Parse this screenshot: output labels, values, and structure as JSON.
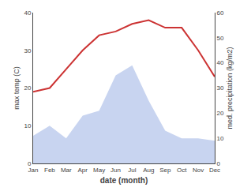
{
  "chart_data": {
    "type": "line",
    "xlabel": "date (month)",
    "ylabel": "max temp (C)",
    "y2label": "med. precipitation (kg/m2)",
    "categories": [
      "Jan",
      "Feb",
      "Mar",
      "Apr",
      "May",
      "Jun",
      "Jul",
      "Aug",
      "Sep",
      "Oct",
      "Nov",
      "Dec"
    ],
    "series": [
      {
        "type": "area",
        "color": "#c8d4f0",
        "axis": "y2",
        "values": [
          11,
          15,
          10,
          19,
          21,
          35,
          39,
          25,
          13,
          10,
          10,
          9
        ]
      },
      {
        "type": "line",
        "color": "#cc3333",
        "values": [
          19,
          20,
          25,
          30,
          34,
          35,
          37,
          38,
          36,
          36,
          30,
          23
        ]
      }
    ],
    "ylim": [
      0,
      40
    ],
    "yticks": [
      0,
      10,
      20,
      30,
      40
    ],
    "y2lim": [
      0,
      60
    ],
    "y2ticks": [
      0,
      10,
      20,
      30,
      40,
      50,
      60
    ],
    "grid": false
  }
}
